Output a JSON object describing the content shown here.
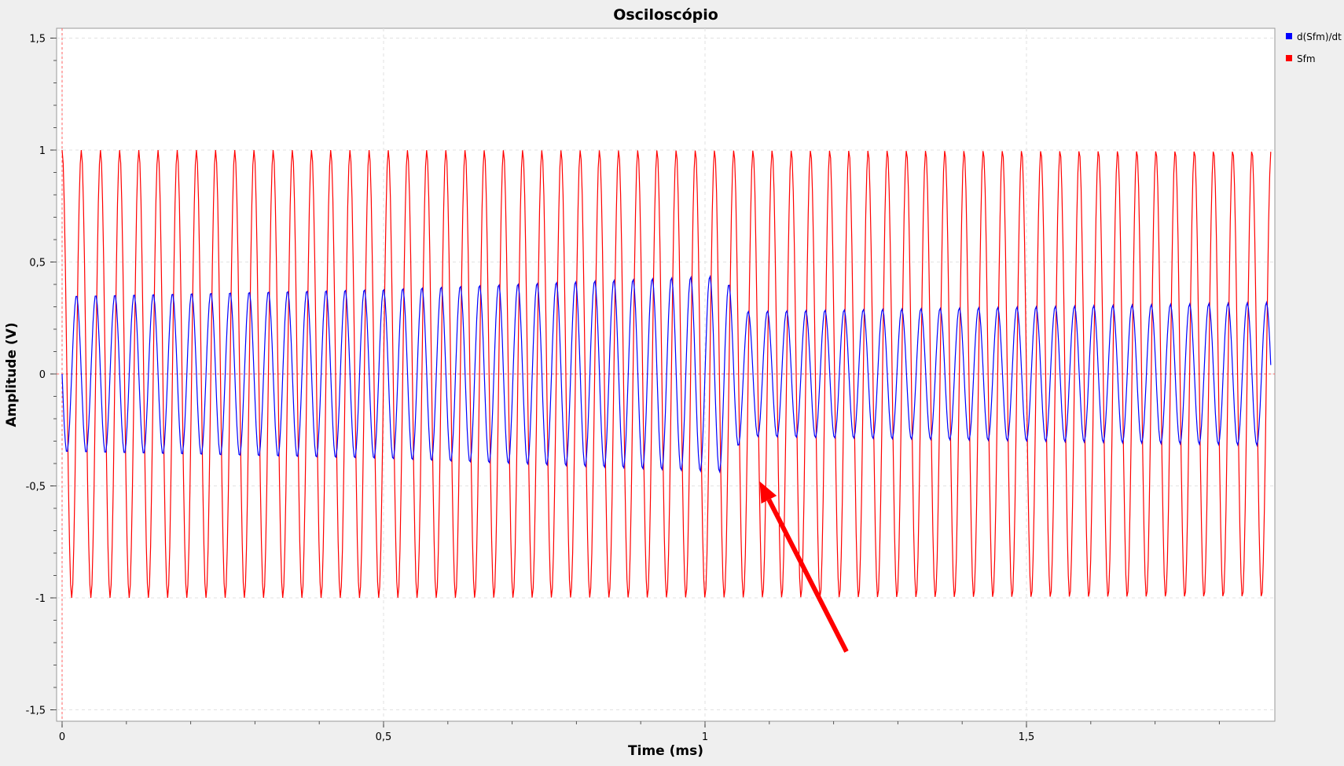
{
  "chart_data": {
    "type": "line",
    "title": "Osciloscópio",
    "xlabel": "Time (ms)",
    "ylabel": "Amplitude (V)",
    "xlim": [
      0,
      1.88
    ],
    "ylim": [
      -1.55,
      1.55
    ],
    "grid": true,
    "legend_position": "right",
    "x_ticks": [
      {
        "value": 0,
        "label": "0"
      },
      {
        "value": 0.5,
        "label": "0,5"
      },
      {
        "value": 1,
        "label": "1"
      },
      {
        "value": 1.5,
        "label": "1,5"
      }
    ],
    "y_ticks": [
      {
        "value": 1.5,
        "label": "1,5"
      },
      {
        "value": 1,
        "label": "1"
      },
      {
        "value": 0.5,
        "label": "0,5"
      },
      {
        "value": 0,
        "label": "0"
      },
      {
        "value": -0.5,
        "label": "-0,5"
      },
      {
        "value": -1,
        "label": "-1"
      },
      {
        "value": -1.5,
        "label": "-1,5"
      }
    ],
    "series": [
      {
        "name": "d(Sfm)/dt",
        "color": "#0000ff",
        "description": "periodic wave, ~33.5 cycles per ms; peak amplitude ~0.35 V at 0 ms rising to ~0.44 V near 1.03 ms, then ~0.28 V, recovering to ~0.32 V at 1.88 ms",
        "cycles_per_ms": 33.5,
        "amplitude_profile": [
          {
            "x": 0,
            "amp": 0.35
          },
          {
            "x": 0.5,
            "amp": 0.38
          },
          {
            "x": 1.03,
            "amp": 0.44
          },
          {
            "x": 1.06,
            "amp": 0.28
          },
          {
            "x": 1.5,
            "amp": 0.3
          },
          {
            "x": 1.88,
            "amp": 0.32
          }
        ]
      },
      {
        "name": "Sfm",
        "color": "#ff0000",
        "description": "periodic wave, ~33.5 cycles per ms, amplitude ~1 V, starts at 1 V",
        "cycles_per_ms": 33.5,
        "amplitude": 1.0
      }
    ],
    "annotations": [
      {
        "type": "arrow",
        "color": "#ff0000",
        "from": {
          "x": 1.22,
          "y": -1.24
        },
        "to": {
          "x": 1.085,
          "y": -0.48
        }
      }
    ]
  }
}
